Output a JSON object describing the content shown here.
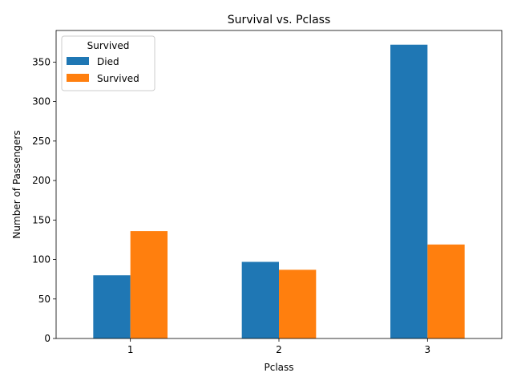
{
  "chart_data": {
    "type": "bar",
    "title": "Survival vs. Pclass",
    "xlabel": "Pclass",
    "ylabel": "Number of Passengers",
    "categories": [
      "1",
      "2",
      "3"
    ],
    "series": [
      {
        "name": "Died",
        "values": [
          80,
          97,
          372
        ],
        "color": "#1f77b4"
      },
      {
        "name": "Survived",
        "values": [
          136,
          87,
          119
        ],
        "color": "#ff7f0e"
      }
    ],
    "ylim": [
      0,
      390
    ],
    "yticks": [
      0,
      50,
      100,
      150,
      200,
      250,
      300,
      350
    ],
    "legend": {
      "title": "Survived",
      "placement": "top-left"
    },
    "grid": false
  }
}
